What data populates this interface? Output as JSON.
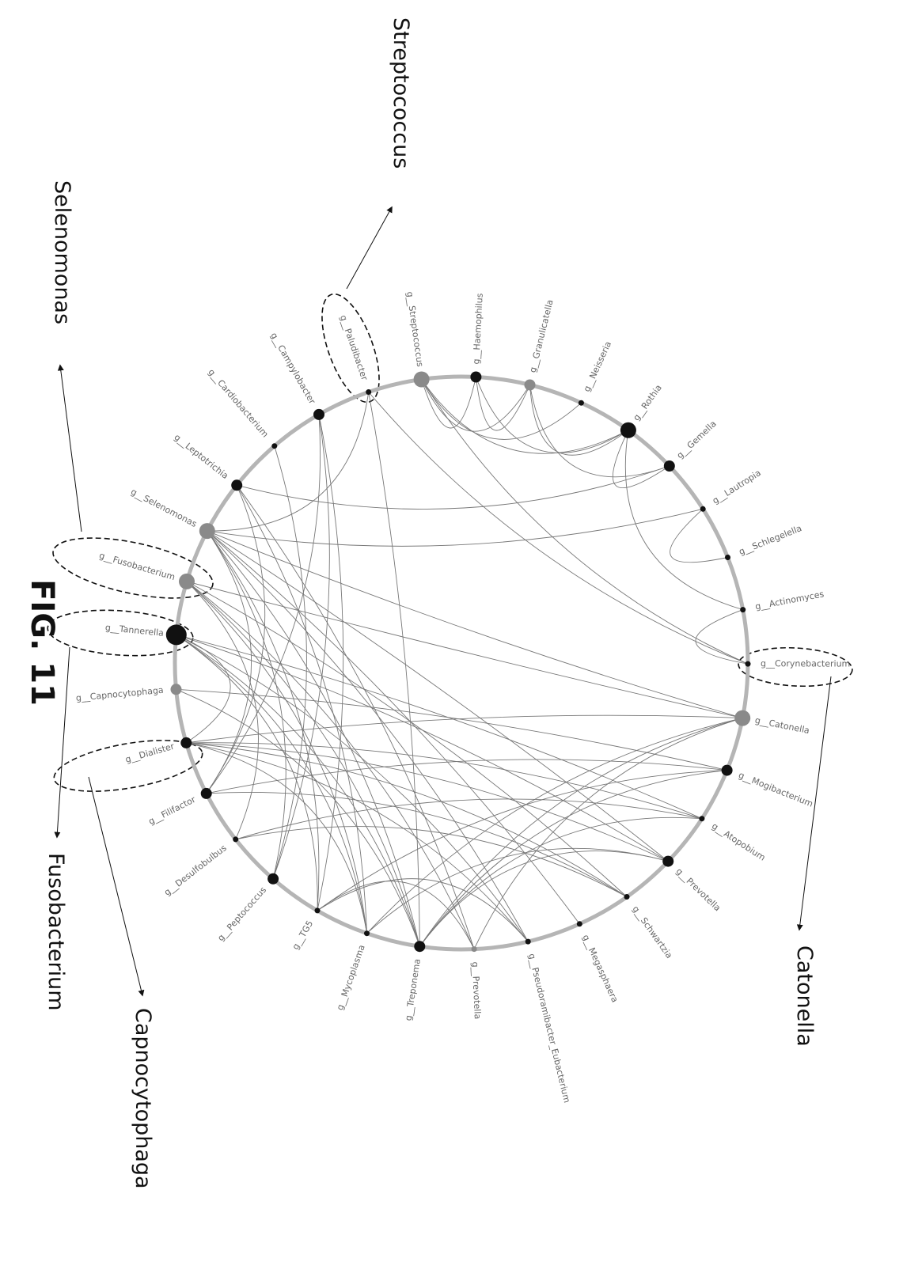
{
  "figure_title": "FIG. 11",
  "callouts": [
    {
      "id": "streptococcus",
      "label": "Streptococcus"
    },
    {
      "id": "selenomonas",
      "label": "Selenomonas"
    },
    {
      "id": "fusobacterium",
      "label": "Fusobacterium"
    },
    {
      "id": "capnocytophaga",
      "label": "Capnocytophaga"
    },
    {
      "id": "catonella",
      "label": "Catonella"
    }
  ],
  "nodes": [
    {
      "id": "streptococcus",
      "label": "g__Streptococcus",
      "size": "medium",
      "color": "#8a8a8a",
      "highlighted": true
    },
    {
      "id": "haemophilus",
      "label": "g__Haemophilus",
      "size": "small",
      "color": "#111111"
    },
    {
      "id": "granulicatella",
      "label": "g__Granulicatella",
      "size": "small",
      "color": "#8a8a8a"
    },
    {
      "id": "neisseria",
      "label": "g__Neisseria",
      "size": "tiny",
      "color": "#111111"
    },
    {
      "id": "rothia",
      "label": "g__Rothia",
      "size": "medium",
      "color": "#111111"
    },
    {
      "id": "gemella",
      "label": "g__Gemella",
      "size": "small",
      "color": "#111111"
    },
    {
      "id": "lautropia",
      "label": "g__Lautropia",
      "size": "tiny",
      "color": "#111111"
    },
    {
      "id": "schlegelella",
      "label": "g__Schlegelella",
      "size": "tiny",
      "color": "#111111"
    },
    {
      "id": "actinomyces",
      "label": "g__Actinomyces",
      "size": "tiny",
      "color": "#111111"
    },
    {
      "id": "corynebacterium",
      "label": "g__Corynebacterium",
      "size": "tiny",
      "color": "#111111"
    },
    {
      "id": "catonella",
      "label": "g__Catonella",
      "size": "medium",
      "color": "#8a8a8a",
      "highlighted": true
    },
    {
      "id": "mogibacterium",
      "label": "g__Mogibacterium",
      "size": "small",
      "color": "#111111"
    },
    {
      "id": "atopobium",
      "label": "g__Atopobium",
      "size": "tiny",
      "color": "#111111"
    },
    {
      "id": "prevotella1",
      "label": "g__Prevotella",
      "size": "small",
      "color": "#111111"
    },
    {
      "id": "schwartzia",
      "label": "g__Schwartzia",
      "size": "tiny",
      "color": "#111111"
    },
    {
      "id": "megasphaera",
      "label": "g__Megasphaera",
      "size": "tiny",
      "color": "#111111"
    },
    {
      "id": "pseudoramibacter",
      "label": "g__Pseudoramibacter_Eubacterium",
      "size": "tiny",
      "color": "#111111"
    },
    {
      "id": "prevotella2",
      "label": "g__Prevotella",
      "size": "tiny",
      "color": "#8a8a8a"
    },
    {
      "id": "treponema",
      "label": "g__Treponema",
      "size": "small",
      "color": "#111111"
    },
    {
      "id": "mycoplasma",
      "label": "g__Mycoplasma",
      "size": "tiny",
      "color": "#111111"
    },
    {
      "id": "tg5",
      "label": "g__TG5",
      "size": "tiny",
      "color": "#111111"
    },
    {
      "id": "peptococcus",
      "label": "g__Peptococcus",
      "size": "small",
      "color": "#111111"
    },
    {
      "id": "desulfobulbus",
      "label": "g__Desulfobulbus",
      "size": "tiny",
      "color": "#111111"
    },
    {
      "id": "filifactor",
      "label": "g__Filifactor",
      "size": "small",
      "color": "#111111"
    },
    {
      "id": "dialister",
      "label": "g__Dialister",
      "size": "small",
      "color": "#111111"
    },
    {
      "id": "capnocytophaga",
      "label": "g__Capnocytophaga",
      "size": "small",
      "color": "#8a8a8a",
      "highlighted": true
    },
    {
      "id": "tannerella",
      "label": "g__Tannerella",
      "size": "large",
      "color": "#111111"
    },
    {
      "id": "fusobacterium",
      "label": "g__Fusobacterium",
      "size": "medium",
      "color": "#8a8a8a",
      "highlighted": true
    },
    {
      "id": "selenomonas",
      "label": "g__Selenomonas",
      "size": "medium",
      "color": "#8a8a8a",
      "highlighted": true
    },
    {
      "id": "leptotrichia",
      "label": "g__Leptotrichia",
      "size": "small",
      "color": "#111111"
    },
    {
      "id": "cardiobacterium",
      "label": "g__Cardiobacterium",
      "size": "tiny",
      "color": "#111111"
    },
    {
      "id": "campylobacter",
      "label": "g__Campylobacter",
      "size": "small",
      "color": "#111111"
    },
    {
      "id": "paludibacter",
      "label": "g__Paludibacter",
      "size": "tiny",
      "color": "#111111"
    }
  ],
  "edges": [
    [
      "streptococcus",
      "haemophilus"
    ],
    [
      "streptococcus",
      "granulicatella"
    ],
    [
      "streptococcus",
      "rothia"
    ],
    [
      "streptococcus",
      "neisseria"
    ],
    [
      "haemophilus",
      "granulicatella"
    ],
    [
      "haemophilus",
      "rothia"
    ],
    [
      "granulicatella",
      "rothia"
    ],
    [
      "granulicatella",
      "gemella"
    ],
    [
      "rothia",
      "gemella"
    ],
    [
      "rothia",
      "actinomyces"
    ],
    [
      "gemella",
      "leptotrichia"
    ],
    [
      "lautropia",
      "selenomonas"
    ],
    [
      "lautropia",
      "schlegelella"
    ],
    [
      "actinomyces",
      "corynebacterium"
    ],
    [
      "corynebacterium",
      "paludibacter"
    ],
    [
      "corynebacterium",
      "streptococcus"
    ],
    [
      "paludibacter",
      "treponema"
    ],
    [
      "paludibacter",
      "selenomonas"
    ],
    [
      "campylobacter",
      "filifactor"
    ],
    [
      "campylobacter",
      "peptococcus"
    ],
    [
      "cardiobacterium",
      "peptococcus"
    ],
    [
      "leptotrichia",
      "mycoplasma"
    ],
    [
      "catonella",
      "selenomonas"
    ],
    [
      "catonella",
      "fusobacterium"
    ],
    [
      "catonella",
      "treponema"
    ],
    [
      "catonella",
      "mycoplasma"
    ],
    [
      "catonella",
      "dialister"
    ],
    [
      "catonella",
      "prevotella2"
    ],
    [
      "mogibacterium",
      "tg5"
    ],
    [
      "mogibacterium",
      "treponema"
    ],
    [
      "mogibacterium",
      "filifactor"
    ],
    [
      "mogibacterium",
      "capnocytophaga"
    ],
    [
      "atopobium",
      "dialister"
    ],
    [
      "atopobium",
      "desulfobulbus"
    ],
    [
      "atopobium",
      "treponema"
    ],
    [
      "prevotella1",
      "tannerella"
    ],
    [
      "prevotella1",
      "dialister"
    ],
    [
      "prevotella1",
      "treponema"
    ],
    [
      "prevotella1",
      "mycoplasma"
    ],
    [
      "schwartzia",
      "dialister"
    ],
    [
      "schwartzia",
      "filifactor"
    ],
    [
      "schwartzia",
      "desulfobulbus"
    ],
    [
      "pseudoramibacter",
      "tannerella"
    ],
    [
      "pseudoramibacter",
      "selenomonas"
    ],
    [
      "pseudoramibacter",
      "tg5"
    ],
    [
      "pseudoramibacter",
      "dialister"
    ],
    [
      "prevotella2",
      "fusobacterium"
    ],
    [
      "prevotella2",
      "tg5"
    ],
    [
      "treponema",
      "selenomonas"
    ],
    [
      "treponema",
      "fusobacterium"
    ],
    [
      "treponema",
      "tannerella"
    ],
    [
      "mycoplasma",
      "tannerella"
    ],
    [
      "mycoplasma",
      "fusobacterium"
    ],
    [
      "tg5",
      "selenomonas"
    ],
    [
      "tg5",
      "tannerella"
    ],
    [
      "peptococcus",
      "selenomonas"
    ],
    [
      "desulfobulbus",
      "fusobacterium"
    ],
    [
      "filifactor",
      "selenomonas"
    ],
    [
      "filifactor",
      "leptotrichia"
    ],
    [
      "dialister",
      "tannerella"
    ],
    [
      "dialister",
      "mycoplasma"
    ],
    [
      "capnocytophaga",
      "treponema"
    ],
    [
      "tannerella",
      "atopobium"
    ],
    [
      "fusobacterium",
      "schwartzia"
    ],
    [
      "selenomonas",
      "prevotella1"
    ],
    [
      "selenomonas",
      "megasphaera"
    ],
    [
      "leptotrichia",
      "prevotella2"
    ],
    [
      "campylobacter",
      "tg5"
    ]
  ]
}
